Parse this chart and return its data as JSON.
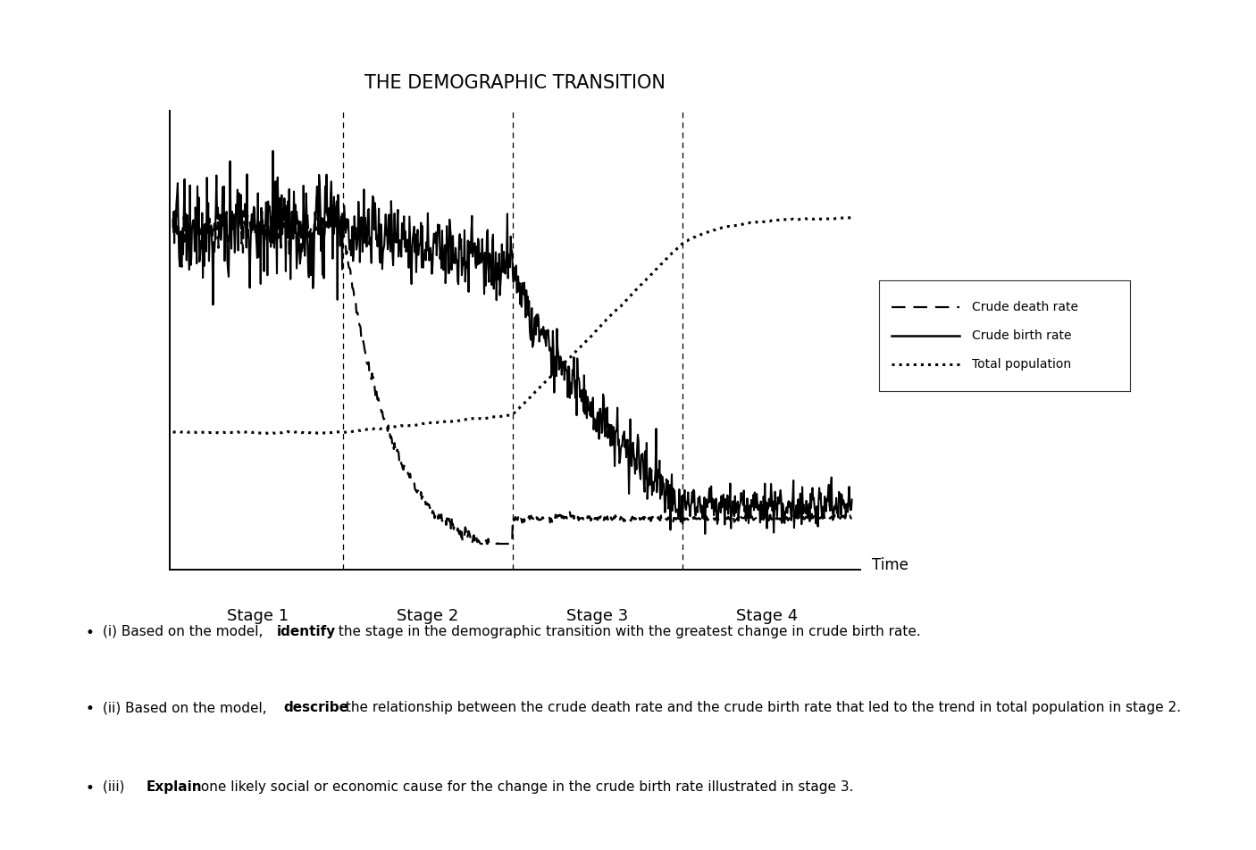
{
  "title": "THE DEMOGRAPHIC TRANSITION",
  "background_color": "#ffffff",
  "stage_labels": [
    "Stage 1",
    "Stage 2",
    "Stage 3",
    "Stage 4"
  ],
  "x_label": "Time",
  "stage_dividers": [
    1.0,
    2.0,
    3.0
  ],
  "legend_labels": [
    "Crude death rate",
    "Crude birth rate",
    "Total population"
  ],
  "bullet_points": [
    {
      "prefix": "(i) Based on the model, ",
      "bold": "identify",
      "suffix": " the stage in the demographic transition with the greatest change in crude birth rate."
    },
    {
      "prefix": "(ii) Based on the model, ",
      "bold": "describe",
      "suffix": " the relationship between the crude death rate and the crude birth rate that led to the trend in total population in stage 2."
    },
    {
      "prefix": "(iii) ",
      "bold": "Explain",
      "suffix": " one likely social or economic cause for the change in the crude birth rate illustrated in stage 3."
    }
  ]
}
